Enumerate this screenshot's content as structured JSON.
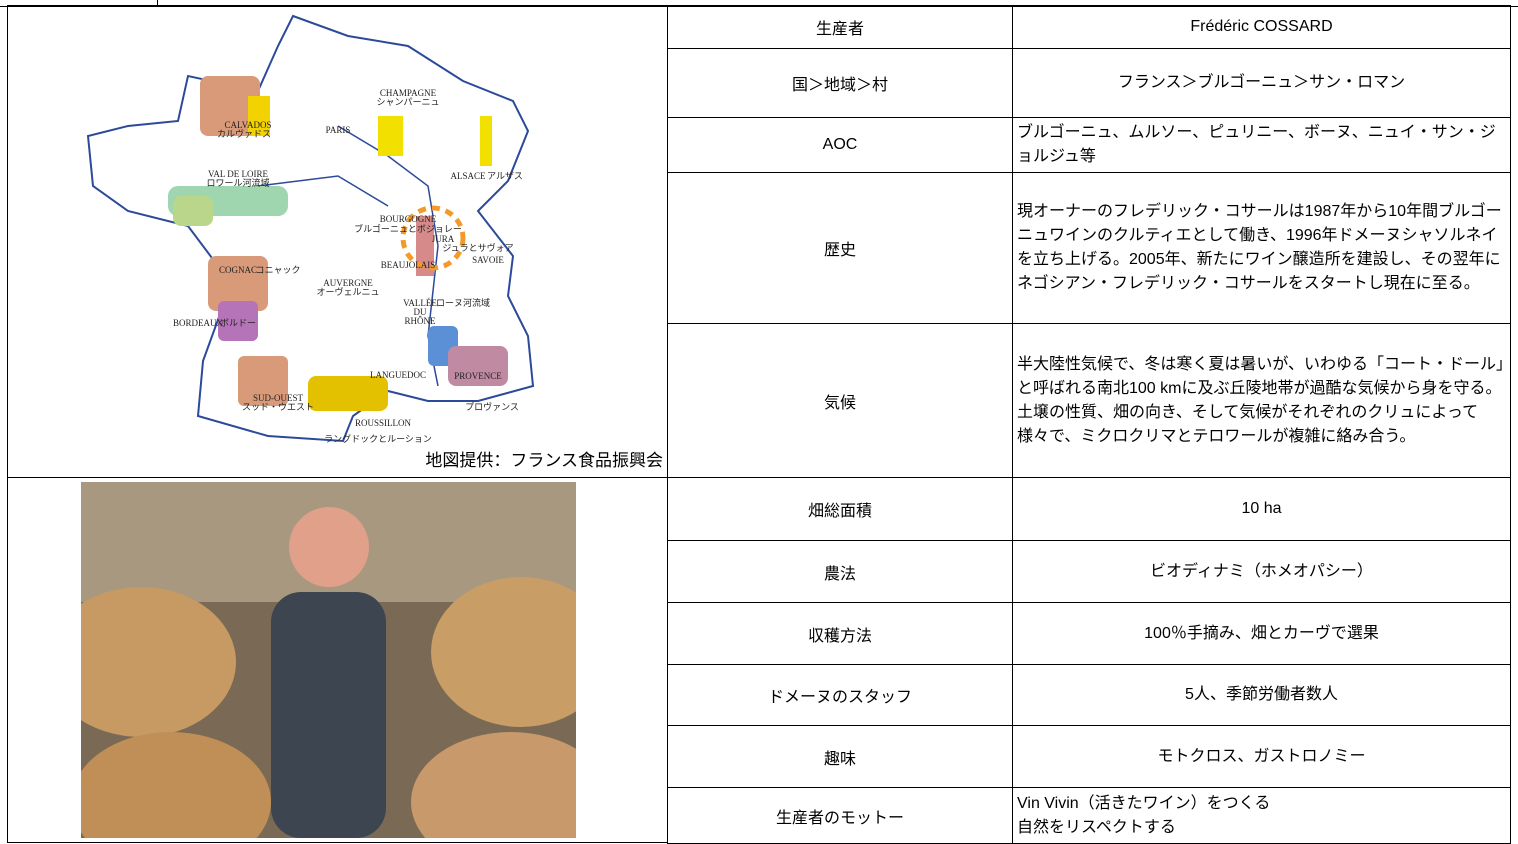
{
  "map": {
    "caption": "地図提供：フランス食品振興会",
    "labels": [
      "CHAMPAGNE",
      "シャンパーニュ",
      "CALVADOS",
      "カルヴァドス",
      "PARIS",
      "VAL DE LOIRE",
      "ロワール河流域",
      "ALSACE",
      "アルザス",
      "BOURGOGNE",
      "ブルゴーニュとボジョレー",
      "JURA",
      "ジュラとサヴォア",
      "SAVOIE",
      "BEAUJOLAIS",
      "COGNAC",
      "コニャック",
      "AUVERGNE",
      "オーヴェルニュ",
      "VALLÉE",
      "DU",
      "RHÔNE",
      "ローヌ河流域",
      "BORDEAUX",
      "ボルドー",
      "LANGUEDOC",
      "PROVENCE",
      "プロヴァンス",
      "SUD-OUEST",
      "スッド・ウエスト",
      "ROUSSILLON",
      "ラングドックとルーション"
    ]
  },
  "table": {
    "rows": [
      [
        "生産者",
        "Frédéric COSSARD"
      ],
      [
        "国＞地域＞村",
        "フランス＞ブルゴーニュ＞サン・ロマン"
      ],
      [
        "AOC",
        "ブルゴーニュ、ムルソー、ピュリニー、ボーヌ、ニュイ・サン・ジョルジュ等"
      ],
      [
        "歴史",
        "現オーナーのフレデリック・コサールは1987年から10年間ブルゴーニュワインのクルティエとして働き、1996年ドメーヌシャソルネイを立ち上げる。2005年、新たにワイン醸造所を建設し、その翌年にネゴシアン・フレデリック・コサールをスタートし現在に至る。"
      ],
      [
        "気候",
        "半大陸性気候で、冬は寒く夏は暑いが、いわゆる「コート・ドール」と呼ばれる南北100 kmに及ぶ丘陵地帯が過酷な気候から身を守る。土壌の性質、畑の向き、そして気候がそれぞれのクリュによって様々で、ミクロクリマとテロワールが複雑に絡み合う。"
      ],
      [
        "畑総面積",
        "10 ha"
      ],
      [
        "農法",
        "ビオディナミ（ホメオパシー）"
      ],
      [
        "収穫方法",
        "100％手摘み、畑とカーヴで選果"
      ],
      [
        "ドメーヌのスタッフ",
        "5人、季節労働者数人"
      ],
      [
        "趣味",
        "モトクロス、ガストロノミー"
      ],
      [
        "生産者のモットー",
        "Vin Vivin（活きたワイン）をつくる\n自然をリスペクトする"
      ]
    ]
  }
}
